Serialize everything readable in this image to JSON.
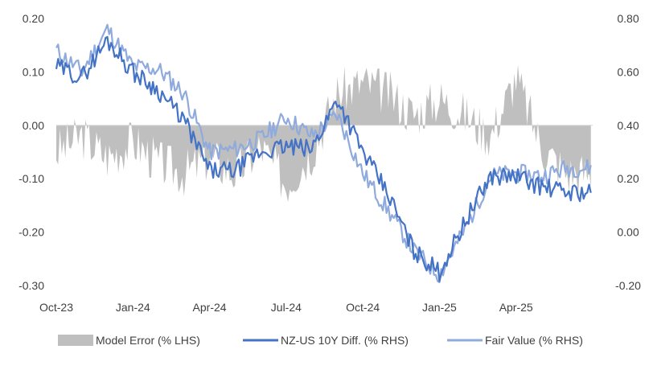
{
  "chart_data": {
    "type": "line",
    "title": "",
    "x_ticks": [
      "Oct-23",
      "Jan-24",
      "Apr-24",
      "Jul-24",
      "Oct-24",
      "Jan-25",
      "Apr-25"
    ],
    "x_range": [
      "Oct-23",
      "Jul-25"
    ],
    "y_left": {
      "min": -0.3,
      "max": 0.2,
      "step": 0.1,
      "tick_labels": [
        "0.20",
        "0.10",
        "0.00",
        "-0.10",
        "-0.20",
        "-0.30"
      ]
    },
    "y_right": {
      "min": -0.2,
      "max": 0.8,
      "step": 0.2,
      "tick_labels": [
        "0.80",
        "0.60",
        "0.40",
        "0.20",
        "0.00",
        "-0.20"
      ]
    },
    "grid": false,
    "legend_position": "bottom",
    "colors": {
      "model_error": "#bfbfbf",
      "nz_us": "#4472c4",
      "fair_value": "#8faadc",
      "axis": "#d9d9d9"
    },
    "months": [
      "Oct-23",
      "Nov-23",
      "Dec-23",
      "Jan-24",
      "Feb-24",
      "Mar-24",
      "Apr-24",
      "May-24",
      "Jun-24",
      "Jul-24",
      "Aug-24",
      "Sep-24",
      "Oct-24",
      "Nov-24",
      "Dec-24",
      "Jan-25",
      "Feb-25",
      "Mar-25",
      "Apr-25",
      "May-25",
      "Jun-25"
    ],
    "series": [
      {
        "name": "Model Error (% LHS)",
        "kind": "area",
        "axis": "left",
        "values": [
          -0.05,
          -0.02,
          -0.06,
          -0.03,
          -0.07,
          -0.09,
          -0.06,
          -0.09,
          -0.04,
          -0.11,
          -0.05,
          0.06,
          0.08,
          0.06,
          0.02,
          0.05,
          0.02,
          -0.02,
          0.09,
          -0.04,
          -0.09
        ]
      },
      {
        "name": "NZ-US 10Y Diff. (% RHS)",
        "kind": "line",
        "axis": "right",
        "values": [
          0.62,
          0.58,
          0.72,
          0.6,
          0.53,
          0.42,
          0.23,
          0.23,
          0.3,
          0.32,
          0.31,
          0.5,
          0.3,
          0.14,
          -0.07,
          -0.15,
          0.04,
          0.21,
          0.21,
          0.17,
          0.15
        ]
      },
      {
        "name": "Fair Value (% RHS)",
        "kind": "line",
        "axis": "right",
        "values": [
          0.68,
          0.6,
          0.76,
          0.62,
          0.61,
          0.52,
          0.3,
          0.31,
          0.35,
          0.43,
          0.36,
          0.44,
          0.22,
          0.08,
          -0.07,
          -0.16,
          0.01,
          0.21,
          0.22,
          0.21,
          0.24
        ]
      }
    ]
  }
}
